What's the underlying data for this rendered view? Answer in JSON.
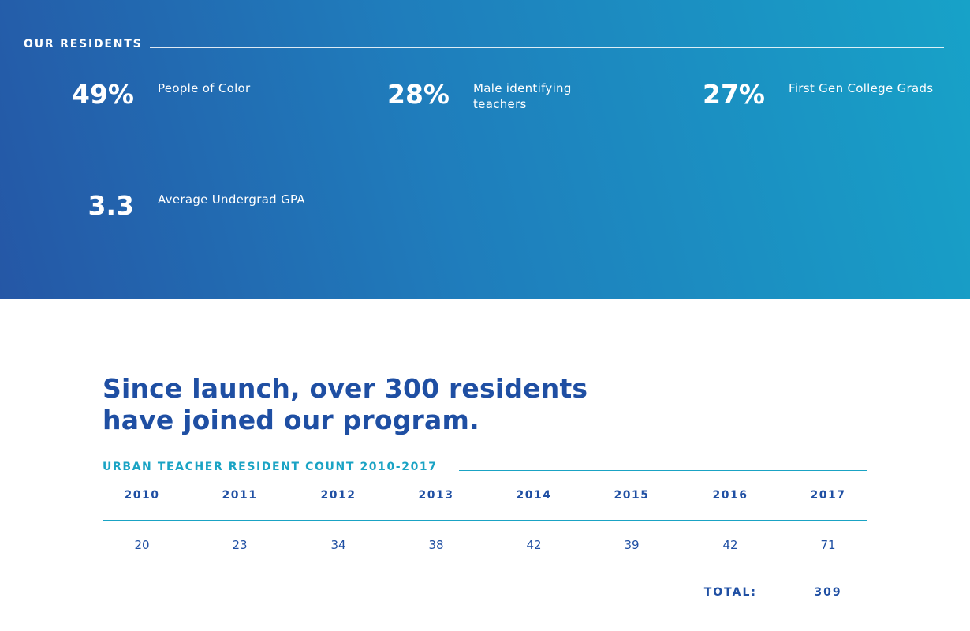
{
  "residents": {
    "heading": "OUR RESIDENTS",
    "stats": [
      {
        "value": "49%",
        "label": "People of Color"
      },
      {
        "value": "28%",
        "label": "Male identifying teachers"
      },
      {
        "value": "27%",
        "label": "First Gen College Grads"
      },
      {
        "value": "3.3",
        "label": "Average Undergrad GPA"
      }
    ]
  },
  "program": {
    "headline_line1": "Since launch, over 300 residents",
    "headline_line2": "have joined our program."
  },
  "resident_table": {
    "title": "URBAN TEACHER RESIDENT COUNT 2010-2017",
    "years": [
      "2010",
      "2011",
      "2012",
      "2013",
      "2014",
      "2015",
      "2016",
      "2017"
    ],
    "counts": [
      "20",
      "23",
      "34",
      "38",
      "42",
      "39",
      "42",
      "71"
    ],
    "total_label": "TOTAL:",
    "total_value": "309"
  },
  "colors": {
    "gradient_start": "#2557a6",
    "gradient_end": "#17a2c8",
    "navy_text": "#1f4fa3",
    "teal_accent": "#1aa3c4"
  }
}
